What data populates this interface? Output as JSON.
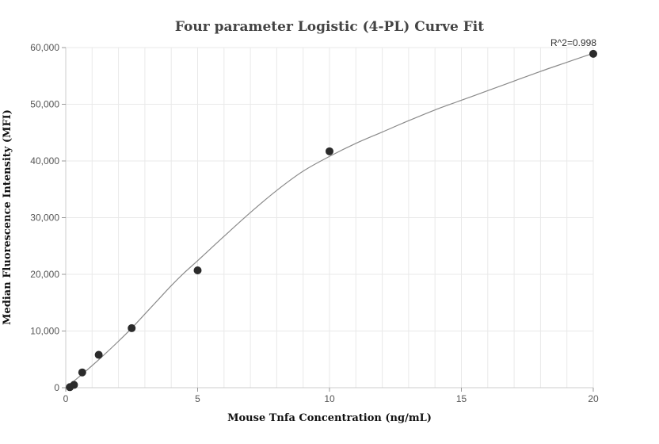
{
  "chart_data": {
    "type": "scatter",
    "title": "Four parameter Logistic (4-PL) Curve Fit",
    "xlabel": "Mouse Tnfa Concentration (ng/mL)",
    "ylabel": "Median Fluorescence Intensity (MFI)",
    "xlim": [
      0,
      20
    ],
    "ylim": [
      0,
      60000
    ],
    "x_ticks": [
      0,
      5,
      10,
      15,
      20
    ],
    "x_tick_labels": [
      "0",
      "5",
      "10",
      "15",
      "20"
    ],
    "y_ticks": [
      0,
      10000,
      20000,
      30000,
      40000,
      50000,
      60000
    ],
    "y_tick_labels": [
      "0",
      "10,000",
      "20,000",
      "30,000",
      "40,000",
      "50,000",
      "60,000"
    ],
    "grid": true,
    "points": {
      "x": [
        0.156,
        0.313,
        0.625,
        1.25,
        2.5,
        5,
        10,
        20
      ],
      "y": [
        100,
        500,
        2700,
        5800,
        10500,
        20700,
        41700,
        58900
      ]
    },
    "fit_curve": {
      "x": [
        0,
        0.5,
        1,
        1.5,
        2,
        2.5,
        3,
        3.5,
        4,
        4.5,
        5,
        6,
        7,
        8,
        9,
        10,
        11,
        12,
        13,
        14,
        15,
        16,
        17,
        18,
        19,
        20
      ],
      "y": [
        0,
        1900,
        3900,
        6000,
        8200,
        10500,
        13000,
        15500,
        18000,
        20300,
        22400,
        26700,
        30900,
        34800,
        38200,
        40800,
        43100,
        45100,
        47100,
        49000,
        50700,
        52400,
        54100,
        55800,
        57400,
        59000
      ]
    },
    "annotations": [
      {
        "text": "R^2=0.998",
        "x": 20,
        "y": 58900
      }
    ],
    "colors": {
      "points": "#2b2b2b",
      "curve": "#8a8a8a",
      "grid": "#e9e9e9",
      "axis": "#cccccc"
    }
  }
}
